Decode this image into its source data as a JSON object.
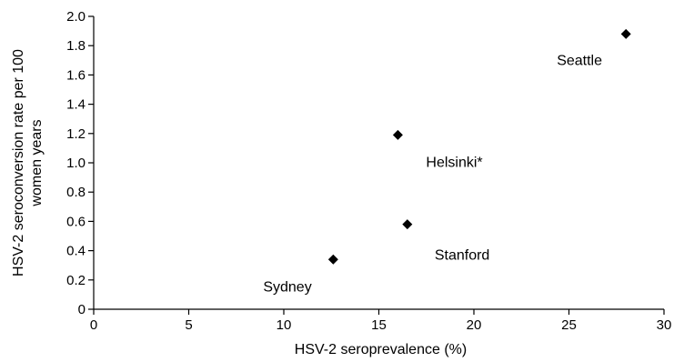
{
  "chart_data": {
    "type": "scatter",
    "title": "",
    "xlabel": "HSV-2 seroprevalence (%)",
    "ylabel_lines": [
      "HSV-2 seroconversion rate per 100",
      "women years"
    ],
    "xlim": [
      0,
      30
    ],
    "ylim": [
      0,
      2.0
    ],
    "x_ticks": [
      0,
      5,
      10,
      15,
      20,
      25,
      30
    ],
    "y_ticks": [
      0,
      0.2,
      0.4,
      0.6,
      0.8,
      1.0,
      1.2,
      1.4,
      1.6,
      1.8,
      2.0
    ],
    "x_tick_labels": [
      "0",
      "5",
      "10",
      "15",
      "20",
      "25",
      "30"
    ],
    "y_tick_labels": [
      "0",
      "0.2",
      "0.4",
      "0.6",
      "0.8",
      "1.0",
      "1.2",
      "1.4",
      "1.6",
      "1.8",
      "2.0"
    ],
    "grid": false,
    "marker": "diamond",
    "marker_color": "#000000",
    "points": [
      {
        "label": "Sydney",
        "x": 12.6,
        "y": 0.34,
        "label_pos": "lower-left"
      },
      {
        "label": "Helsinki*",
        "x": 16.0,
        "y": 1.19,
        "label_pos": "lower-right"
      },
      {
        "label": "Stanford",
        "x": 16.5,
        "y": 0.58,
        "label_pos": "lower-right"
      },
      {
        "label": "Seattle",
        "x": 28.0,
        "y": 1.88,
        "label_pos": "lower-left"
      }
    ]
  }
}
